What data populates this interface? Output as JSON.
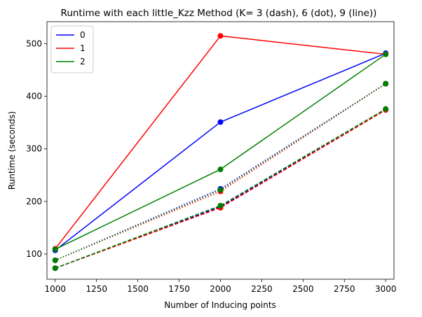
{
  "chart_data": {
    "type": "line",
    "title": "Runtime with each little_Kzz Method (K= 3 (dash), 6 (dot), 9 (line))",
    "xlabel": "Number of Inducing points",
    "ylabel": "Runtime (seconds)",
    "xlim": [
      950,
      3050
    ],
    "ylim": [
      52,
      542
    ],
    "xticks": [
      1000,
      1250,
      1500,
      1750,
      2000,
      2250,
      2500,
      2750,
      3000
    ],
    "yticks": [
      100,
      200,
      300,
      400,
      500
    ],
    "grid": false,
    "legend_placement": "top-left",
    "x": [
      1000,
      2000,
      3000
    ],
    "series": [
      {
        "name": "0",
        "color": "#0000ff",
        "values": [
          107,
          351,
          482
        ],
        "k": 9,
        "style": "solid",
        "in_legend": true
      },
      {
        "name": "1",
        "color": "#ff0000",
        "values": [
          110,
          515,
          480
        ],
        "k": 9,
        "style": "solid",
        "in_legend": true
      },
      {
        "name": "2",
        "color": "#008000",
        "values": [
          109,
          261,
          480
        ],
        "k": 9,
        "style": "solid",
        "in_legend": true
      },
      {
        "name": "",
        "color": "#0000ff",
        "values": [
          88,
          224,
          424
        ],
        "k": 6,
        "style": "dotted",
        "in_legend": false
      },
      {
        "name": "",
        "color": "#ff0000",
        "values": [
          88,
          219,
          424
        ],
        "k": 6,
        "style": "dotted",
        "in_legend": false
      },
      {
        "name": "",
        "color": "#008000",
        "values": [
          88,
          222,
          424
        ],
        "k": 6,
        "style": "dotted",
        "in_legend": false
      },
      {
        "name": "",
        "color": "#0000ff",
        "values": [
          73,
          190,
          375
        ],
        "k": 3,
        "style": "dashed",
        "in_legend": false
      },
      {
        "name": "",
        "color": "#ff0000",
        "values": [
          73,
          188,
          374
        ],
        "k": 3,
        "style": "dashed",
        "in_legend": false
      },
      {
        "name": "",
        "color": "#008000",
        "values": [
          73,
          192,
          376
        ],
        "k": 3,
        "style": "dashed",
        "in_legend": false
      }
    ]
  }
}
